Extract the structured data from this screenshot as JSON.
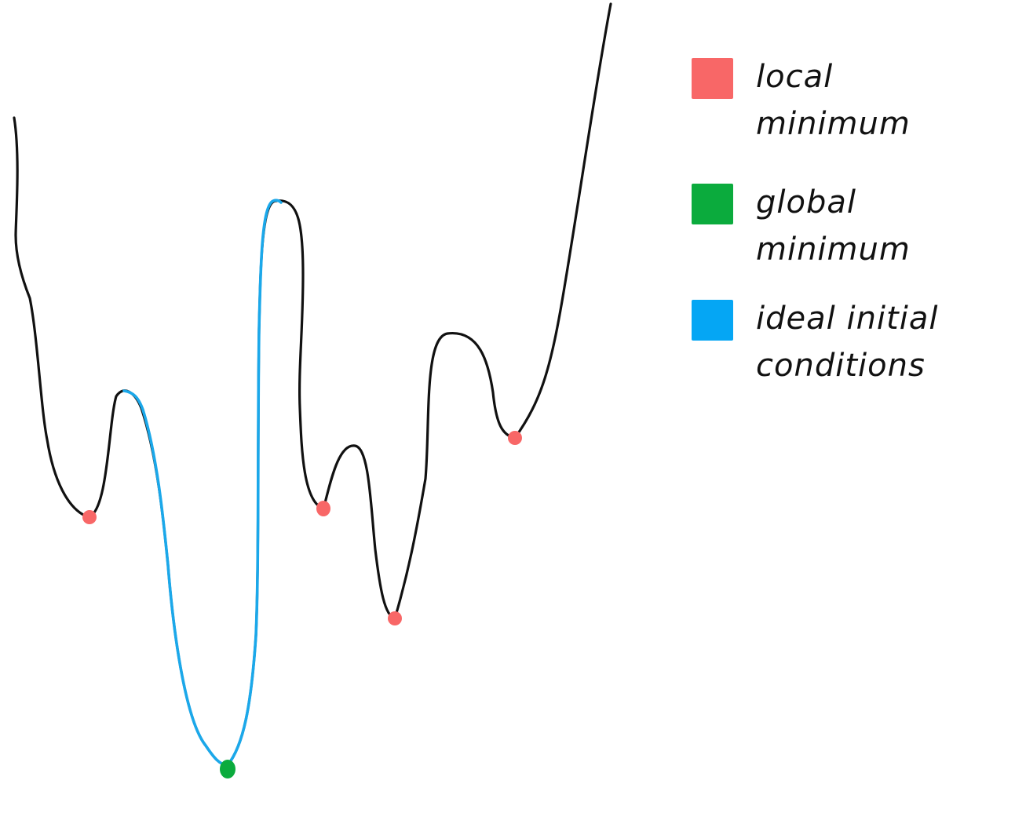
{
  "legend": {
    "items": [
      {
        "label": "local minimum",
        "color": "#f86767"
      },
      {
        "label": "global minimum",
        "color": "#0bab3d"
      },
      {
        "label": "ideal initial conditions",
        "color": "#05a6f4"
      }
    ]
  },
  "diagram": {
    "curve_color": "#111111",
    "highlight_color": "#1ba8ea",
    "local_minimum_marker_color": "#f86767",
    "global_minimum_marker_color": "#0bab3d"
  }
}
